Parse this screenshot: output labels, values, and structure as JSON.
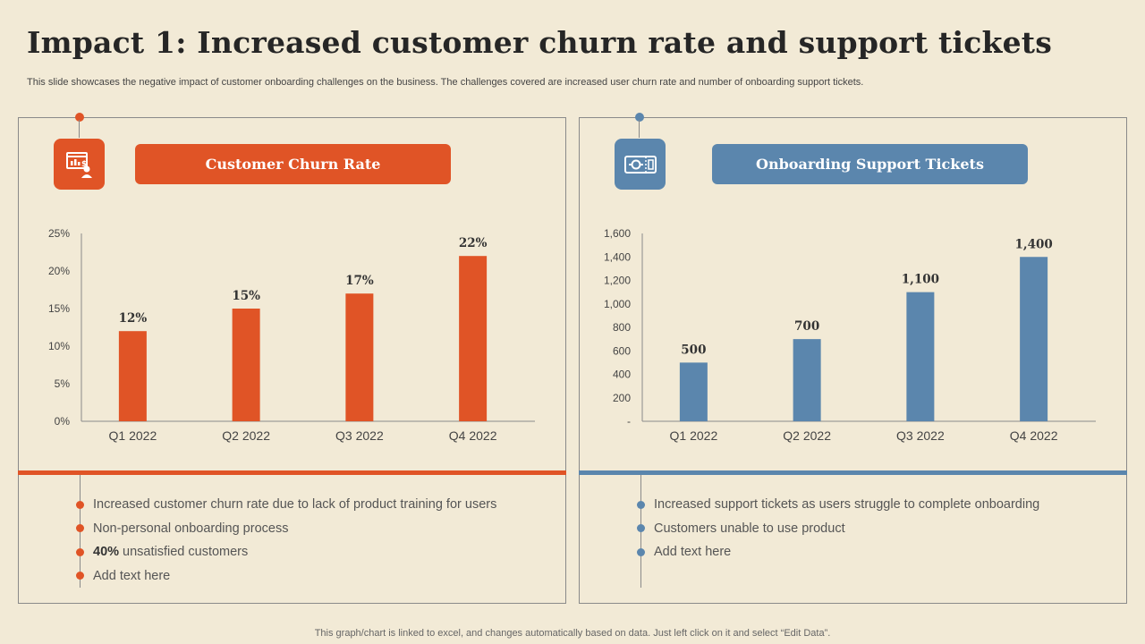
{
  "title": "Impact 1: Increased customer churn rate and support tickets",
  "subtitle": "This slide showcases the negative impact of customer onboarding challenges on the business. The challenges covered are increased user churn rate and number of onboarding support tickets.",
  "footer": "This graph/chart is linked to excel,  and changes automatically based on data. Just left click on it and select “Edit Data”.",
  "colors": {
    "orange": "#e05426",
    "blue": "#5b86ad",
    "background": "#f2ead6"
  },
  "left_panel": {
    "header": "Customer Churn Rate",
    "icon": "churn-report-icon",
    "bullets": [
      {
        "bold": "",
        "text": "Increased customer churn rate due to lack of product training for users"
      },
      {
        "bold": "",
        "text": "Non-personal onboarding process"
      },
      {
        "bold": "40%",
        "text": "unsatisfied customers"
      },
      {
        "bold": "",
        "text": "Add text here"
      }
    ]
  },
  "right_panel": {
    "header": "Onboarding Support Tickets",
    "icon": "support-ticket-icon",
    "bullets": [
      {
        "bold": "",
        "text": "Increased support tickets as users struggle to complete onboarding"
      },
      {
        "bold": "",
        "text": "Customers unable to use product"
      },
      {
        "bold": "",
        "text": "Add text here"
      }
    ]
  },
  "chart_data": [
    {
      "type": "bar",
      "title": "Customer Churn Rate",
      "categories": [
        "Q1 2022",
        "Q2 2022",
        "Q3 2022",
        "Q4 2022"
      ],
      "values": [
        12,
        15,
        17,
        22
      ],
      "data_labels": [
        "12%",
        "15%",
        "17%",
        "22%"
      ],
      "ylim": [
        0,
        25
      ],
      "yticks": [
        0,
        5,
        10,
        15,
        20,
        25
      ],
      "ytick_labels": [
        "0%",
        "5%",
        "10%",
        "15%",
        "20%",
        "25%"
      ],
      "color": "#e05426",
      "grid": false
    },
    {
      "type": "bar",
      "title": "Onboarding Support Tickets",
      "categories": [
        "Q1 2022",
        "Q2 2022",
        "Q3 2022",
        "Q4 2022"
      ],
      "values": [
        500,
        700,
        1100,
        1400
      ],
      "data_labels": [
        "500",
        "700",
        "1,100",
        "1,400"
      ],
      "ylim": [
        0,
        1600
      ],
      "yticks": [
        0,
        200,
        400,
        600,
        800,
        1000,
        1200,
        1400,
        1600
      ],
      "ytick_labels": [
        "-",
        "200",
        "400",
        "600",
        "800",
        "1,000",
        "1,200",
        "1,400",
        "1,600"
      ],
      "color": "#5b86ad",
      "grid": false
    }
  ]
}
